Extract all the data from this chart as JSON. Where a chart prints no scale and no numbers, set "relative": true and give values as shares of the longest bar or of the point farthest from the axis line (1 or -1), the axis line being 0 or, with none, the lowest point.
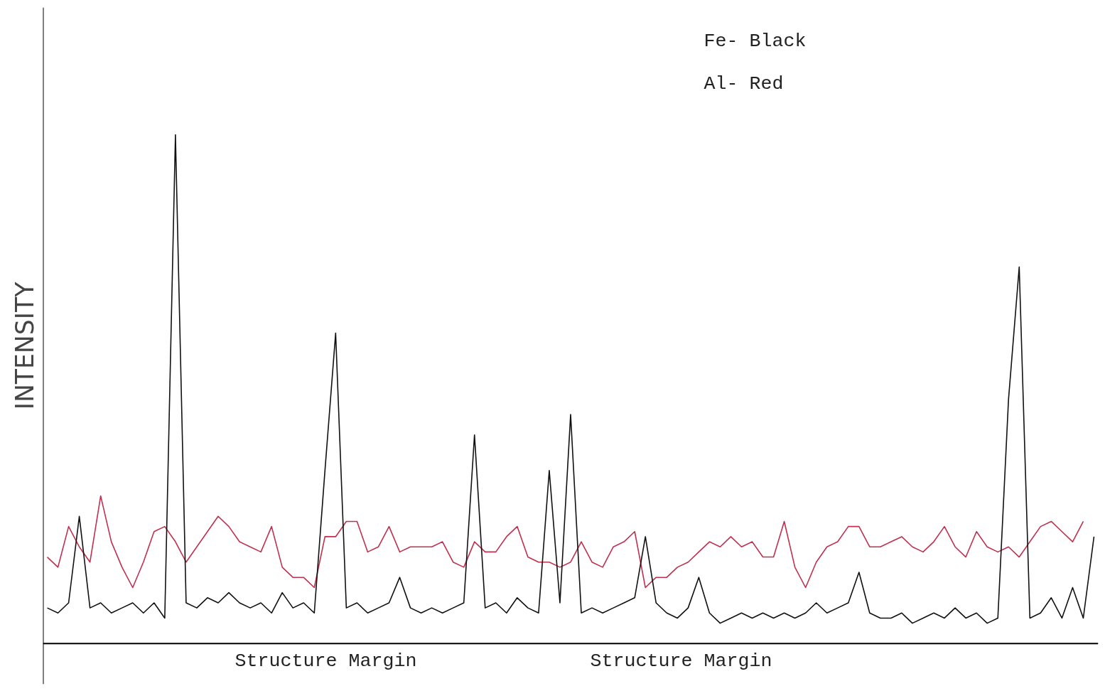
{
  "chart_data": {
    "type": "line",
    "relative": true,
    "ylabel": "INTENSITY",
    "tick_labels": false,
    "categories": [
      null,
      null,
      null,
      null,
      null,
      null,
      null,
      null,
      null,
      null,
      null,
      null,
      null,
      null,
      null,
      null,
      null,
      null,
      null,
      null,
      null,
      null,
      null,
      null,
      null,
      null,
      null,
      null,
      null,
      null,
      null,
      null,
      null,
      null,
      null,
      null,
      null,
      null,
      null,
      null,
      null,
      null,
      null,
      null,
      null,
      null,
      null,
      null,
      null,
      null,
      null,
      null,
      null,
      null,
      null,
      null,
      null,
      null,
      null,
      null,
      null,
      null,
      null,
      null,
      null,
      null,
      null,
      null,
      null,
      null,
      null,
      null,
      null,
      null,
      null,
      null,
      null,
      null,
      null,
      null,
      null,
      null,
      null,
      null,
      null,
      null,
      null,
      null,
      null,
      null,
      null,
      null,
      null,
      null,
      null,
      null,
      null,
      null,
      null
    ],
    "series": [
      {
        "color": "#c0304f",
        "values": [
          0.17,
          0.15,
          0.23,
          0.19,
          0.16,
          0.29,
          0.2,
          0.15,
          0.11,
          0.16,
          0.22,
          0.23,
          0.2,
          0.16,
          0.19,
          0.22,
          0.25,
          0.23,
          0.2,
          0.19,
          0.18,
          0.23,
          0.15,
          0.13,
          0.13,
          0.11,
          0.21,
          0.21,
          0.24,
          0.24,
          0.18,
          0.19,
          0.23,
          0.18,
          0.19,
          0.19,
          0.19,
          0.2,
          0.16,
          0.15,
          0.2,
          0.18,
          0.18,
          0.21,
          0.23,
          0.17,
          0.16,
          0.16,
          0.15,
          0.16,
          0.2,
          0.16,
          0.15,
          0.19,
          0.2,
          0.22,
          0.11,
          0.13,
          0.13,
          0.15,
          0.16,
          0.18,
          0.2,
          0.19,
          0.21,
          0.19,
          0.2,
          0.17,
          0.17,
          0.24,
          0.15,
          0.11,
          0.16,
          0.19,
          0.2,
          0.23,
          0.23,
          0.19,
          0.19,
          0.2,
          0.21,
          0.19,
          0.18,
          0.2,
          0.23,
          0.19,
          0.17,
          0.22,
          0.19,
          0.18,
          0.19,
          0.17,
          0.2,
          0.23,
          0.24,
          0.22,
          0.2,
          0.24,
          null
        ]
      },
      {
        "color": "#111111",
        "values": [
          0.07,
          0.06,
          0.08,
          0.25,
          0.07,
          0.08,
          0.06,
          0.07,
          0.08,
          0.06,
          0.08,
          0.05,
          1.0,
          0.08,
          0.07,
          0.09,
          0.08,
          0.1,
          0.08,
          0.07,
          0.08,
          0.06,
          0.1,
          0.07,
          0.08,
          0.06,
          0.34,
          0.61,
          0.07,
          0.08,
          0.06,
          0.07,
          0.08,
          0.13,
          0.07,
          0.06,
          0.07,
          0.06,
          0.07,
          0.08,
          0.41,
          0.07,
          0.08,
          0.06,
          0.09,
          0.07,
          0.06,
          0.34,
          0.08,
          0.45,
          0.06,
          0.07,
          0.06,
          0.07,
          0.08,
          0.09,
          0.21,
          0.08,
          0.06,
          0.05,
          0.07,
          0.13,
          0.06,
          0.04,
          0.05,
          0.06,
          0.05,
          0.06,
          0.05,
          0.06,
          0.05,
          0.06,
          0.08,
          0.06,
          0.07,
          0.08,
          0.14,
          0.06,
          0.05,
          0.05,
          0.06,
          0.04,
          0.05,
          0.06,
          0.05,
          0.07,
          0.05,
          0.06,
          0.04,
          0.05,
          0.48,
          0.74,
          0.05,
          0.06,
          0.09,
          0.05,
          0.11,
          0.05,
          0.21
        ]
      }
    ],
    "annotations": [
      "Fe- Black",
      "Al- Red",
      "Structure Margin",
      "Structure Margin"
    ]
  }
}
